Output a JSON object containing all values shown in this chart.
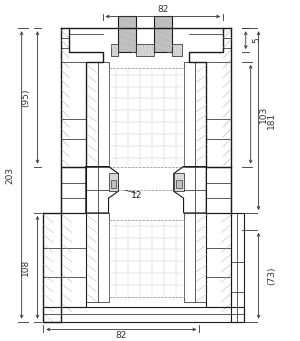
{
  "bg_color": "#ffffff",
  "line_color": "#1a1a1a",
  "dim_color": "#333333",
  "gray_fill": "#c0c0c0",
  "light_gray": "#d8d8d8",
  "dash_color": "#888888",
  "annotations": {
    "top_width": "82",
    "bottom_width": "82",
    "dim_5": "5",
    "dim_95": "(95)",
    "dim_103": "103",
    "dim_181": "181",
    "dim_203": "203",
    "dim_108": "108",
    "dim_73": "(73)",
    "dim_12": "12"
  },
  "figsize": [
    3.0,
    3.41
  ],
  "dpi": 100
}
